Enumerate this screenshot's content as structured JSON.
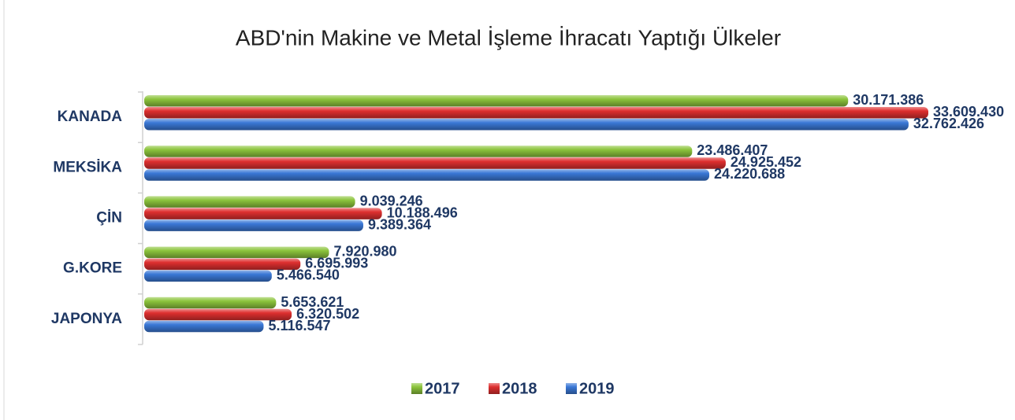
{
  "chart_data": {
    "type": "barh",
    "title": "ABD'nin Makine ve Metal İşleme İhracatı Yaptığı Ülkeler",
    "categories": [
      "KANADA",
      "MEKSİKA",
      "ÇİN",
      "G.KORE",
      "JAPONYA"
    ],
    "series": [
      {
        "name": "2017",
        "color": "#8cc43c",
        "values": [
          30171386,
          23486407,
          9039246,
          7920980,
          5653621
        ],
        "value_labels": [
          "30.171.386",
          "23.486.407",
          "9.039.246",
          "7.920.980",
          "5.653.621"
        ]
      },
      {
        "name": "2018",
        "color": "#de2f2f",
        "values": [
          33609430,
          24925452,
          10188496,
          6695993,
          6320502
        ],
        "value_labels": [
          "33.609.430",
          "24.925.452",
          "10.188.496",
          "6.695.993",
          "6.320.502"
        ]
      },
      {
        "name": "2019",
        "color": "#3a78d6",
        "values": [
          32762426,
          24220688,
          9389364,
          5466540,
          5116547
        ],
        "value_labels": [
          "32.762.426",
          "24.220.688",
          "9.389.364",
          "5.466.540",
          "5.116.547"
        ]
      }
    ],
    "legend": "bottom"
  }
}
